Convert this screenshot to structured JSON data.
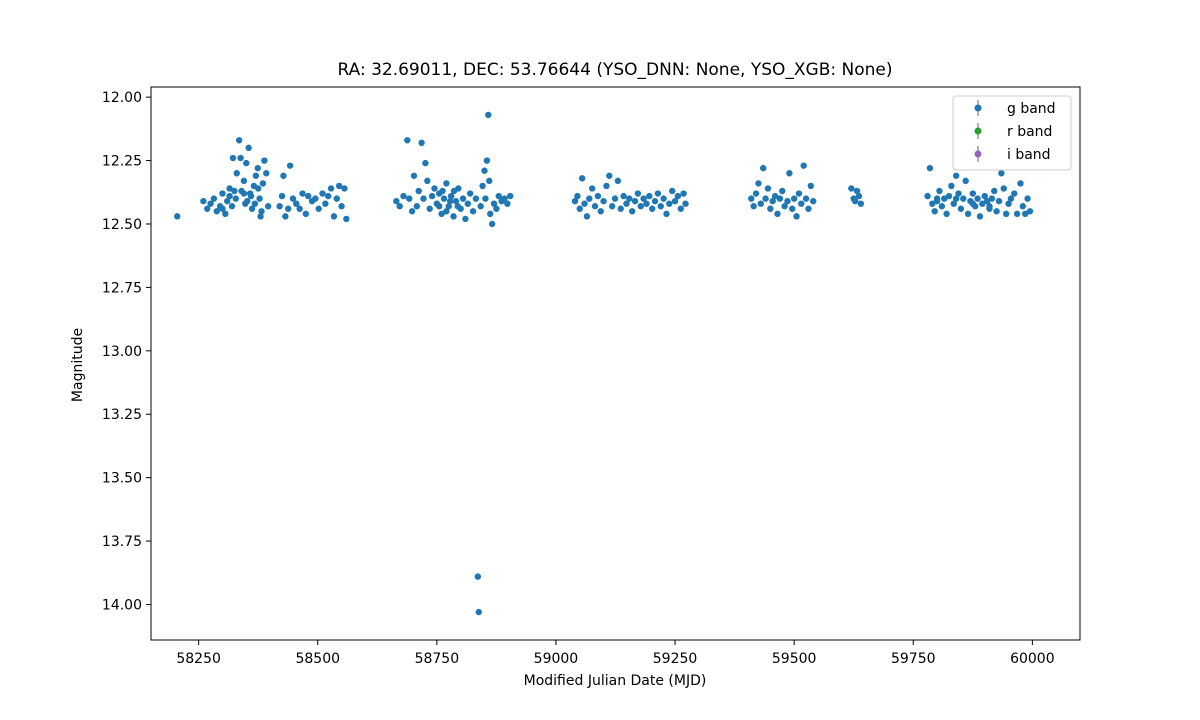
{
  "chart_data": {
    "type": "scatter",
    "title": "RA: 32.69011, DEC: 53.76644 (YSO_DNN: None, YSO_XGB: None)",
    "xlabel": "Modified Julian Date (MJD)",
    "ylabel": "Magnitude",
    "xlim": [
      58150,
      60100
    ],
    "ylim": [
      14.14,
      11.96
    ],
    "y_inverted": true,
    "x_ticks": [
      58250,
      58500,
      58750,
      59000,
      59250,
      59500,
      59750,
      60000
    ],
    "y_ticks": [
      12.0,
      12.25,
      12.5,
      12.75,
      13.0,
      13.25,
      13.5,
      13.75,
      14.0
    ],
    "x_tick_labels": [
      "58250",
      "58500",
      "58750",
      "59000",
      "59250",
      "59500",
      "59750",
      "60000"
    ],
    "y_tick_labels": [
      "12.00",
      "12.25",
      "12.50",
      "12.75",
      "13.00",
      "13.25",
      "13.50",
      "13.75",
      "14.00"
    ],
    "grid": false,
    "legend_position": "top-right",
    "series": [
      {
        "name": "g band",
        "color": "#1f77b4",
        "points": [
          [
            58205,
            12.47
          ],
          [
            58260,
            12.41
          ],
          [
            58268,
            12.44
          ],
          [
            58275,
            12.42
          ],
          [
            58282,
            12.4
          ],
          [
            58288,
            12.45
          ],
          [
            58295,
            12.43
          ],
          [
            58300,
            12.38
          ],
          [
            58306,
            12.46
          ],
          [
            58310,
            12.41
          ],
          [
            58315,
            12.36
          ],
          [
            58320,
            12.43
          ],
          [
            58322,
            12.24
          ],
          [
            58328,
            12.4
          ],
          [
            58330,
            12.3
          ],
          [
            58335,
            12.17
          ],
          [
            58338,
            12.24
          ],
          [
            58340,
            12.37
          ],
          [
            58345,
            12.33
          ],
          [
            58348,
            12.42
          ],
          [
            58350,
            12.26
          ],
          [
            58355,
            12.2
          ],
          [
            58358,
            12.38
          ],
          [
            58362,
            12.44
          ],
          [
            58366,
            12.35
          ],
          [
            58370,
            12.31
          ],
          [
            58374,
            12.28
          ],
          [
            58378,
            12.4
          ],
          [
            58382,
            12.45
          ],
          [
            58385,
            12.34
          ],
          [
            58388,
            12.25
          ],
          [
            58392,
            12.3
          ],
          [
            58396,
            12.43
          ],
          [
            58300,
            12.44
          ],
          [
            58315,
            12.39
          ],
          [
            58325,
            12.37
          ],
          [
            58345,
            12.38
          ],
          [
            58352,
            12.41
          ],
          [
            58360,
            12.39
          ],
          [
            58368,
            12.42
          ],
          [
            58375,
            12.36
          ],
          [
            58380,
            12.47
          ],
          [
            58420,
            12.43
          ],
          [
            58425,
            12.39
          ],
          [
            58428,
            12.31
          ],
          [
            58432,
            12.47
          ],
          [
            58438,
            12.44
          ],
          [
            58442,
            12.27
          ],
          [
            58448,
            12.4
          ],
          [
            58455,
            12.42
          ],
          [
            58462,
            12.44
          ],
          [
            58468,
            12.38
          ],
          [
            58475,
            12.46
          ],
          [
            58480,
            12.39
          ],
          [
            58488,
            12.41
          ],
          [
            58495,
            12.4
          ],
          [
            58502,
            12.44
          ],
          [
            58510,
            12.38
          ],
          [
            58516,
            12.42
          ],
          [
            58522,
            12.39
          ],
          [
            58528,
            12.36
          ],
          [
            58534,
            12.47
          ],
          [
            58540,
            12.4
          ],
          [
            58545,
            12.35
          ],
          [
            58550,
            12.43
          ],
          [
            58556,
            12.36
          ],
          [
            58560,
            12.48
          ],
          [
            58665,
            12.41
          ],
          [
            58672,
            12.43
          ],
          [
            58680,
            12.39
          ],
          [
            58688,
            12.17
          ],
          [
            58692,
            12.4
          ],
          [
            58698,
            12.45
          ],
          [
            58702,
            12.31
          ],
          [
            58708,
            12.43
          ],
          [
            58712,
            12.37
          ],
          [
            58718,
            12.18
          ],
          [
            58722,
            12.4
          ],
          [
            58726,
            12.26
          ],
          [
            58730,
            12.33
          ],
          [
            58735,
            12.44
          ],
          [
            58740,
            12.39
          ],
          [
            58745,
            12.36
          ],
          [
            58750,
            12.42
          ],
          [
            58755,
            12.38
          ],
          [
            58760,
            12.46
          ],
          [
            58765,
            12.4
          ],
          [
            58770,
            12.34
          ],
          [
            58775,
            12.43
          ],
          [
            58780,
            12.39
          ],
          [
            58785,
            12.47
          ],
          [
            58790,
            12.41
          ],
          [
            58795,
            12.36
          ],
          [
            58800,
            12.44
          ],
          [
            58805,
            12.4
          ],
          [
            58810,
            12.48
          ],
          [
            58815,
            12.42
          ],
          [
            58820,
            12.38
          ],
          [
            58826,
            12.45
          ],
          [
            58832,
            12.4
          ],
          [
            58836,
            13.89
          ],
          [
            58838,
            14.03
          ],
          [
            58842,
            12.43
          ],
          [
            58846,
            12.35
          ],
          [
            58850,
            12.29
          ],
          [
            58852,
            12.4
          ],
          [
            58855,
            12.25
          ],
          [
            58858,
            12.07
          ],
          [
            58860,
            12.33
          ],
          [
            58862,
            12.46
          ],
          [
            58866,
            12.5
          ],
          [
            58870,
            12.42
          ],
          [
            58875,
            12.44
          ],
          [
            58880,
            12.39
          ],
          [
            58886,
            12.41
          ],
          [
            58892,
            12.4
          ],
          [
            58898,
            12.42
          ],
          [
            58904,
            12.39
          ],
          [
            58755,
            12.43
          ],
          [
            58762,
            12.37
          ],
          [
            58770,
            12.45
          ],
          [
            58778,
            12.41
          ],
          [
            58786,
            12.37
          ],
          [
            58794,
            12.43
          ],
          [
            59040,
            12.41
          ],
          [
            59045,
            12.39
          ],
          [
            59050,
            12.44
          ],
          [
            59055,
            12.32
          ],
          [
            59060,
            12.42
          ],
          [
            59065,
            12.47
          ],
          [
            59070,
            12.4
          ],
          [
            59076,
            12.36
          ],
          [
            59082,
            12.43
          ],
          [
            59088,
            12.39
          ],
          [
            59094,
            12.45
          ],
          [
            59100,
            12.41
          ],
          [
            59106,
            12.35
          ],
          [
            59112,
            12.31
          ],
          [
            59118,
            12.43
          ],
          [
            59124,
            12.4
          ],
          [
            59130,
            12.33
          ],
          [
            59136,
            12.44
          ],
          [
            59142,
            12.39
          ],
          [
            59148,
            12.42
          ],
          [
            59154,
            12.4
          ],
          [
            59160,
            12.45
          ],
          [
            59166,
            12.41
          ],
          [
            59172,
            12.38
          ],
          [
            59178,
            12.43
          ],
          [
            59184,
            12.4
          ],
          [
            59190,
            12.42
          ],
          [
            59196,
            12.39
          ],
          [
            59202,
            12.44
          ],
          [
            59208,
            12.41
          ],
          [
            59214,
            12.38
          ],
          [
            59220,
            12.43
          ],
          [
            59226,
            12.4
          ],
          [
            59232,
            12.46
          ],
          [
            59238,
            12.42
          ],
          [
            59244,
            12.37
          ],
          [
            59250,
            12.41
          ],
          [
            59256,
            12.39
          ],
          [
            59262,
            12.44
          ],
          [
            59268,
            12.38
          ],
          [
            59272,
            12.42
          ],
          [
            59410,
            12.4
          ],
          [
            59415,
            12.43
          ],
          [
            59420,
            12.38
          ],
          [
            59425,
            12.34
          ],
          [
            59430,
            12.42
          ],
          [
            59435,
            12.28
          ],
          [
            59440,
            12.4
          ],
          [
            59445,
            12.36
          ],
          [
            59450,
            12.44
          ],
          [
            59455,
            12.41
          ],
          [
            59460,
            12.39
          ],
          [
            59465,
            12.46
          ],
          [
            59470,
            12.4
          ],
          [
            59475,
            12.37
          ],
          [
            59480,
            12.43
          ],
          [
            59486,
            12.41
          ],
          [
            59490,
            12.3
          ],
          [
            59496,
            12.44
          ],
          [
            59500,
            12.4
          ],
          [
            59505,
            12.47
          ],
          [
            59510,
            12.38
          ],
          [
            59515,
            12.42
          ],
          [
            59520,
            12.27
          ],
          [
            59525,
            12.4
          ],
          [
            59530,
            12.44
          ],
          [
            59535,
            12.35
          ],
          [
            59540,
            12.41
          ],
          [
            59620,
            12.36
          ],
          [
            59625,
            12.4
          ],
          [
            59628,
            12.41
          ],
          [
            59632,
            12.37
          ],
          [
            59636,
            12.39
          ],
          [
            59640,
            12.42
          ],
          [
            59780,
            12.39
          ],
          [
            59785,
            12.28
          ],
          [
            59790,
            12.42
          ],
          [
            59795,
            12.45
          ],
          [
            59800,
            12.4
          ],
          [
            59805,
            12.37
          ],
          [
            59810,
            12.43
          ],
          [
            59815,
            12.4
          ],
          [
            59820,
            12.46
          ],
          [
            59825,
            12.39
          ],
          [
            59830,
            12.35
          ],
          [
            59835,
            12.42
          ],
          [
            59840,
            12.31
          ],
          [
            59845,
            12.38
          ],
          [
            59850,
            12.44
          ],
          [
            59855,
            12.4
          ],
          [
            59860,
            12.33
          ],
          [
            59865,
            12.46
          ],
          [
            59870,
            12.41
          ],
          [
            59875,
            12.38
          ],
          [
            59880,
            12.43
          ],
          [
            59885,
            12.4
          ],
          [
            59890,
            12.47
          ],
          [
            59895,
            12.42
          ],
          [
            59900,
            12.39
          ],
          [
            59905,
            12.41
          ],
          [
            59910,
            12.44
          ],
          [
            59915,
            12.4
          ],
          [
            59920,
            12.37
          ],
          [
            59925,
            12.45
          ],
          [
            59930,
            12.41
          ],
          [
            59935,
            12.3
          ],
          [
            59940,
            12.36
          ],
          [
            59945,
            12.46
          ],
          [
            59950,
            12.42
          ],
          [
            59955,
            12.4
          ],
          [
            59962,
            12.38
          ],
          [
            59968,
            12.46
          ],
          [
            59975,
            12.34
          ],
          [
            59980,
            12.43
          ],
          [
            59985,
            12.46
          ],
          [
            59990,
            12.4
          ],
          [
            59995,
            12.45
          ],
          [
            59800,
            12.41
          ],
          [
            59840,
            12.4
          ],
          [
            59875,
            12.42
          ],
          [
            59910,
            12.43
          ]
        ]
      },
      {
        "name": "r band",
        "color": "#2ca02c",
        "points": []
      },
      {
        "name": "i band",
        "color": "#9467bd",
        "points": []
      }
    ]
  }
}
